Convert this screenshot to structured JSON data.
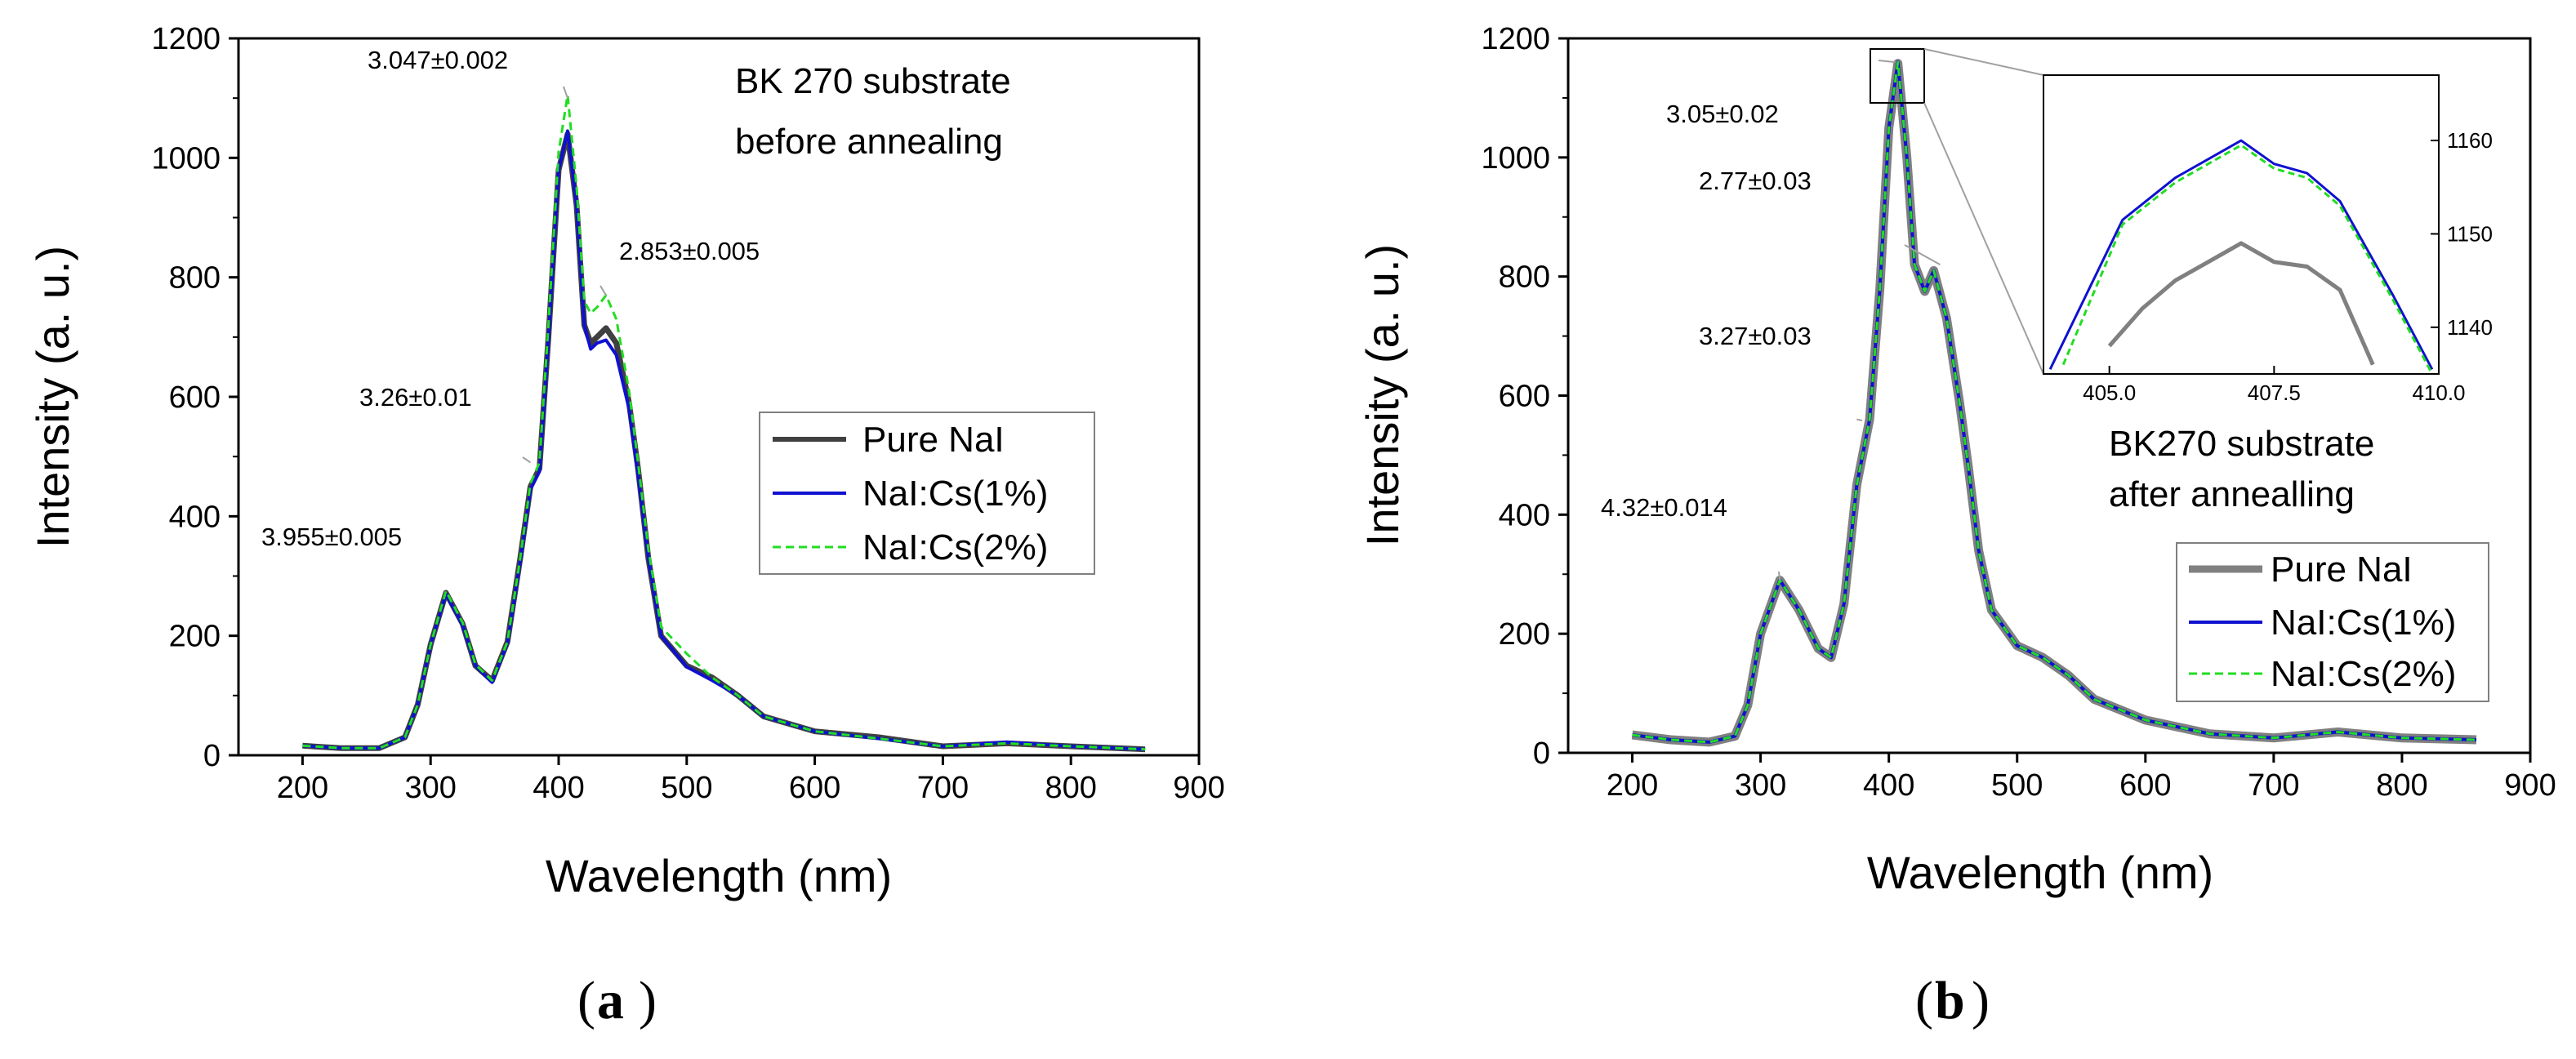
{
  "chart_data": [
    {
      "panel": "(a)",
      "panel_letter": "a",
      "type": "line",
      "title": "BK 270 substrate before annealing",
      "title_lines": [
        "BK 270 substrate",
        "before annealing"
      ],
      "xlabel": "Wavelength (nm)",
      "ylabel": "Intensity (a. u.)",
      "xlim": [
        150,
        900
      ],
      "ylim": [
        0,
        1200
      ],
      "xticks": [
        200,
        300,
        400,
        500,
        600,
        700,
        800,
        900
      ],
      "yticks": [
        0,
        200,
        400,
        600,
        800,
        1000,
        1200
      ],
      "legend": [
        "Pure NaI",
        "NaI:Cs(1%)",
        "NaI:Cs(2%)"
      ],
      "annotations": [
        {
          "text": "3.955±0.005",
          "x": 312,
          "y": 270
        },
        {
          "text": "3.26±0.01",
          "x": 378,
          "y": 490
        },
        {
          "text": "3.047±0.002",
          "x": 407,
          "y": 1100
        },
        {
          "text": "2.853±0.005",
          "x": 437,
          "y": 770
        }
      ],
      "series": [
        {
          "name": "Pure NaI",
          "color": "#404040",
          "style": "solid",
          "x": [
            200,
            230,
            260,
            280,
            290,
            300,
            312,
            325,
            335,
            348,
            360,
            370,
            378,
            385,
            392,
            400,
            407,
            414,
            420,
            425,
            430,
            437,
            445,
            455,
            462,
            470,
            480,
            500,
            520,
            540,
            560,
            600,
            650,
            700,
            750,
            800,
            858
          ],
          "y": [
            16,
            12,
            12,
            30,
            85,
            185,
            272,
            220,
            150,
            125,
            190,
            330,
            450,
            480,
            700,
            980,
            1040,
            920,
            720,
            690,
            700,
            715,
            690,
            590,
            480,
            330,
            200,
            150,
            130,
            100,
            65,
            40,
            30,
            15,
            20,
            15,
            10
          ]
        },
        {
          "name": "NaI:Cs(1%)",
          "color": "#1010d0",
          "style": "solid",
          "x": [
            200,
            230,
            260,
            280,
            290,
            300,
            312,
            325,
            335,
            348,
            360,
            370,
            378,
            385,
            392,
            400,
            407,
            414,
            420,
            425,
            430,
            437,
            445,
            455,
            462,
            470,
            480,
            500,
            520,
            540,
            560,
            600,
            650,
            700,
            750,
            800,
            858
          ],
          "y": [
            16,
            12,
            12,
            30,
            85,
            185,
            270,
            218,
            150,
            122,
            188,
            325,
            445,
            475,
            695,
            980,
            1045,
            920,
            720,
            680,
            690,
            695,
            670,
            580,
            470,
            330,
            200,
            148,
            125,
            100,
            65,
            40,
            28,
            15,
            22,
            15,
            10
          ]
        },
        {
          "name": "NaI:Cs(2%)",
          "color": "#22dd22",
          "style": "dashed",
          "x": [
            200,
            230,
            260,
            280,
            290,
            300,
            312,
            325,
            335,
            348,
            360,
            370,
            378,
            385,
            392,
            400,
            407,
            414,
            420,
            425,
            430,
            437,
            445,
            455,
            462,
            470,
            480,
            500,
            520,
            540,
            560,
            600,
            650,
            700,
            750,
            800,
            858
          ],
          "y": [
            16,
            12,
            12,
            30,
            85,
            185,
            275,
            222,
            152,
            125,
            190,
            330,
            455,
            490,
            720,
            1010,
            1105,
            950,
            760,
            740,
            750,
            770,
            730,
            610,
            490,
            345,
            215,
            170,
            130,
            100,
            65,
            40,
            28,
            15,
            20,
            15,
            10
          ]
        }
      ]
    },
    {
      "panel": "(b)",
      "panel_letter": "b",
      "type": "line",
      "title": "BK270 substrate after annealling",
      "title_lines": [
        "BK270 substrate",
        "after annealling"
      ],
      "xlabel": "Wavelength (nm)",
      "ylabel": "Intensity (a. u.)",
      "xlim": [
        150,
        900
      ],
      "ylim": [
        0,
        1200
      ],
      "xticks": [
        200,
        300,
        400,
        500,
        600,
        700,
        800,
        900
      ],
      "yticks": [
        0,
        200,
        400,
        600,
        800,
        1000,
        1200
      ],
      "legend": [
        "Pure NaI",
        "NaI:Cs(1%)",
        "NaI:Cs(2%)"
      ],
      "annotations": [
        {
          "text": "4.32±0.014",
          "x": 315,
          "y": 290
        },
        {
          "text": "3.27±0.03",
          "x": 375,
          "y": 560
        },
        {
          "text": "2.77±0.03",
          "x": 440,
          "y": 820
        },
        {
          "text": "3.05±0.02",
          "x": 405,
          "y": 1160
        }
      ],
      "series": [
        {
          "name": "Pure NaI",
          "color": "#808080",
          "style": "solid",
          "x": [
            200,
            230,
            260,
            280,
            290,
            300,
            315,
            330,
            345,
            355,
            365,
            375,
            385,
            393,
            400,
            407,
            414,
            420,
            428,
            435,
            445,
            455,
            462,
            470,
            480,
            500,
            520,
            540,
            560,
            600,
            650,
            700,
            750,
            800,
            858
          ],
          "y": [
            30,
            22,
            18,
            28,
            80,
            200,
            290,
            240,
            175,
            160,
            250,
            450,
            560,
            780,
            1050,
            1158,
            1000,
            820,
            775,
            810,
            730,
            590,
            480,
            340,
            240,
            180,
            160,
            130,
            90,
            55,
            32,
            25,
            35,
            25,
            22
          ]
        },
        {
          "name": "NaI:Cs(1%)",
          "color": "#1010d0",
          "style": "solid",
          "x": [
            200,
            230,
            260,
            280,
            290,
            300,
            315,
            330,
            345,
            355,
            365,
            375,
            385,
            393,
            400,
            407,
            414,
            420,
            428,
            435,
            445,
            455,
            462,
            470,
            480,
            500,
            520,
            540,
            560,
            600,
            650,
            700,
            750,
            800,
            858
          ],
          "y": [
            30,
            22,
            18,
            28,
            80,
            200,
            290,
            240,
            175,
            160,
            250,
            450,
            560,
            780,
            1050,
            1160,
            1000,
            820,
            775,
            810,
            730,
            590,
            480,
            340,
            240,
            180,
            160,
            130,
            90,
            55,
            32,
            25,
            35,
            25,
            22
          ]
        },
        {
          "name": "NaI:Cs(2%)",
          "color": "#22dd22",
          "style": "dashed",
          "x": [
            200,
            230,
            260,
            280,
            290,
            300,
            315,
            330,
            345,
            355,
            365,
            375,
            385,
            393,
            400,
            407,
            414,
            420,
            428,
            435,
            445,
            455,
            462,
            470,
            480,
            500,
            520,
            540,
            560,
            600,
            650,
            700,
            750,
            800,
            858
          ],
          "y": [
            30,
            22,
            18,
            28,
            80,
            200,
            290,
            240,
            175,
            160,
            250,
            450,
            560,
            780,
            1050,
            1160,
            1000,
            820,
            775,
            810,
            730,
            590,
            480,
            340,
            240,
            180,
            160,
            130,
            90,
            55,
            32,
            25,
            35,
            25,
            22
          ]
        }
      ],
      "inset": {
        "xlim": [
          404,
          410
        ],
        "ylim": [
          1135,
          1167
        ],
        "xticks": [
          "405.0",
          "407.5",
          "410.0"
        ],
        "xtick_values": [
          405.0,
          407.5,
          410.0
        ],
        "yticks": [
          1140,
          1150,
          1160
        ],
        "series": [
          {
            "name": "Pure NaI",
            "color": "#808080",
            "style": "solid",
            "x": [
              405.0,
              405.5,
              406.0,
              406.5,
              407.0,
              407.5,
              408.0,
              408.5,
              409.0
            ],
            "y": [
              1138,
              1142,
              1145,
              1147,
              1149,
              1147,
              1146.5,
              1144,
              1136
            ]
          },
          {
            "name": "NaI:Cs(1%)",
            "color": "#1010d0",
            "style": "solid",
            "x": [
              404.1,
              405.2,
              406.0,
              406.5,
              407.0,
              407.5,
              408.0,
              408.5,
              409.3,
              409.9
            ],
            "y": [
              1135.5,
              1151.5,
              1156,
              1158,
              1160,
              1157.5,
              1156.5,
              1153.5,
              1143.5,
              1135.5
            ]
          },
          {
            "name": "NaI:Cs(2%)",
            "color": "#22dd22",
            "style": "dashed",
            "x": [
              404.3,
              405.2,
              406.0,
              406.5,
              407.0,
              407.5,
              408.0,
              408.5,
              409.3,
              409.9
            ],
            "y": [
              1136,
              1151,
              1155.5,
              1157.5,
              1159.5,
              1157,
              1156,
              1153,
              1143,
              1135
            ]
          }
        ]
      }
    }
  ]
}
